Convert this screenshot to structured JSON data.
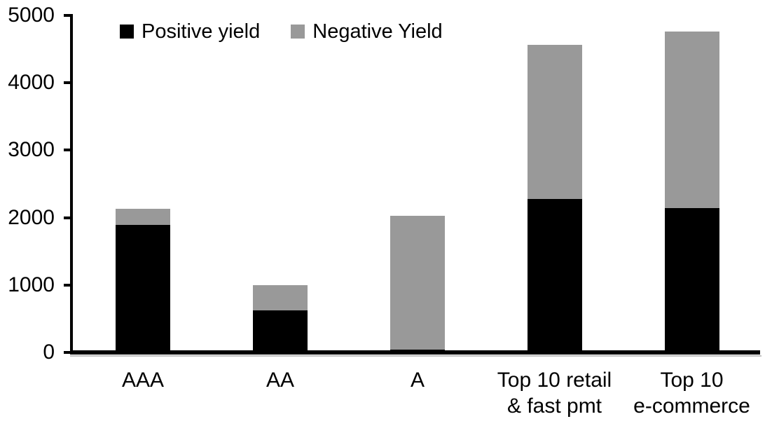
{
  "chart_data": {
    "type": "bar",
    "stacked": true,
    "title": "",
    "xlabel": "",
    "ylabel": "",
    "categories": [
      "AAA",
      "AA",
      "A",
      "Top 10 retail\n& fast pmt",
      "Top 10\ne-commerce"
    ],
    "series": [
      {
        "name": "Positive yield",
        "color": "#000000",
        "values": [
          1890,
          620,
          40,
          2280,
          2140
        ]
      },
      {
        "name": "Negative Yield",
        "color": "#999999",
        "values": [
          240,
          380,
          1990,
          2280,
          2620
        ]
      }
    ],
    "totals": [
      2130,
      1000,
      2030,
      4560,
      4760
    ],
    "ylim": [
      0,
      5000
    ],
    "yticks": [
      0,
      1000,
      2000,
      3000,
      4000,
      5000
    ],
    "grid": false,
    "legend_position": "top",
    "axis_color": "#000000",
    "axis_shadow_color": "#c0c0c0",
    "background_color": "#ffffff"
  }
}
